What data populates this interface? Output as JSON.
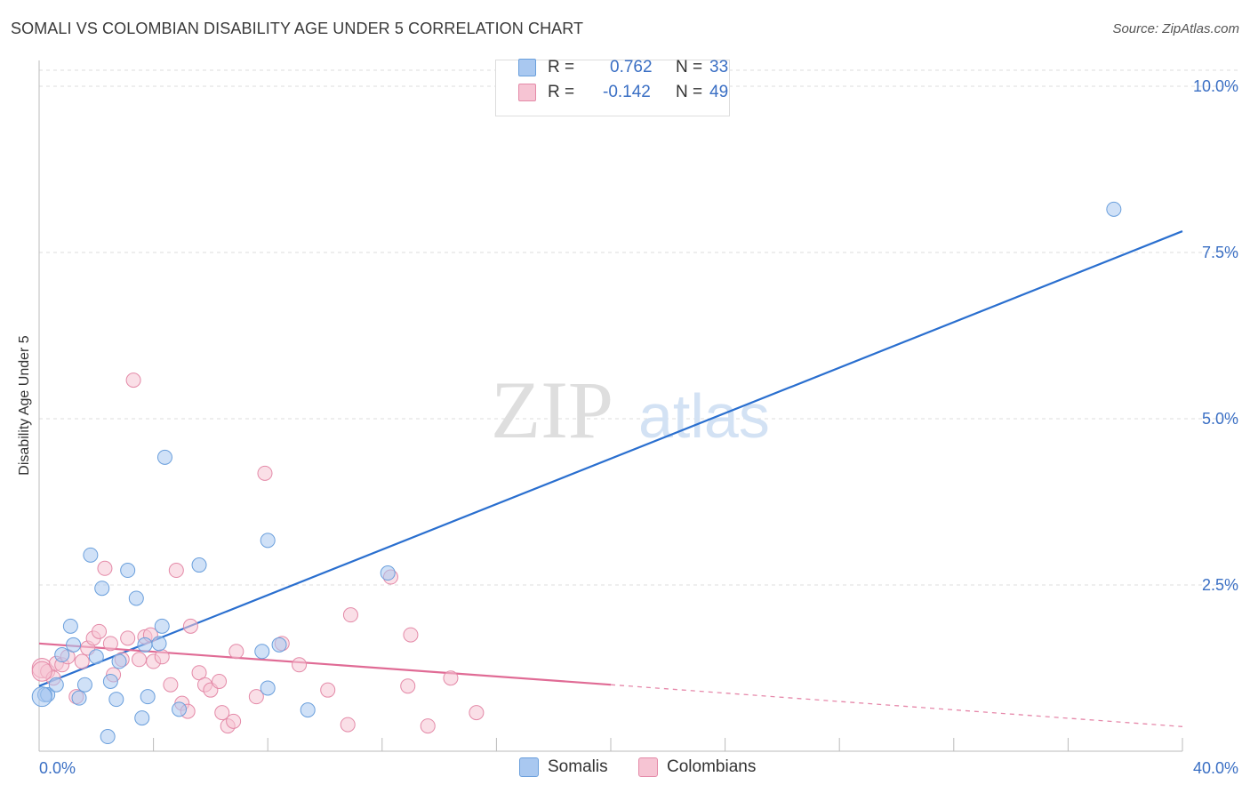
{
  "header": {
    "title": "SOMALI VS COLOMBIAN DISABILITY AGE UNDER 5 CORRELATION CHART",
    "source": "Source: ZipAtlas.com"
  },
  "watermark": {
    "zip": "ZIP",
    "atlas": "atlas"
  },
  "legend": {
    "rows": [
      {
        "r_label": "R =",
        "r_value": "0.762",
        "n_label": "N =",
        "n_value": "33",
        "color": "#a9c8f0",
        "border": "#6a9fdc"
      },
      {
        "r_label": "R =",
        "r_value": "-0.142",
        "n_label": "N =",
        "n_value": "49",
        "color": "#f6c4d3",
        "border": "#e48aa8"
      }
    ]
  },
  "bottom_legend": [
    {
      "label": "Somalis",
      "color": "#a9c8f0",
      "border": "#6a9fdc"
    },
    {
      "label": "Colombians",
      "color": "#f6c4d3",
      "border": "#e48aa8"
    }
  ],
  "chart_data": {
    "type": "scatter",
    "title": "SOMALI VS COLOMBIAN DISABILITY AGE UNDER 5 CORRELATION CHART",
    "xlabel": "",
    "ylabel": "Disability Age Under 5",
    "xlim": [
      0,
      40
    ],
    "ylim": [
      0,
      10.2
    ],
    "x_tick_labels": [
      {
        "value": 0,
        "label": "0.0%"
      },
      {
        "value": 40,
        "label": "40.0%"
      }
    ],
    "y_tick_labels": [
      {
        "value": 2.5,
        "label": "2.5%"
      },
      {
        "value": 5.0,
        "label": "5.0%"
      },
      {
        "value": 7.5,
        "label": "7.5%"
      },
      {
        "value": 10.0,
        "label": "10.0%"
      }
    ],
    "x_minor_ticks": [
      0,
      4,
      8,
      12,
      16,
      20,
      24,
      28,
      32,
      36,
      40
    ],
    "series": [
      {
        "name": "Somalis",
        "color": "#a9c8f0",
        "stroke": "#6a9fdc",
        "line_color": "#2a6fcf",
        "points": [
          [
            0.2,
            0.85
          ],
          [
            0.3,
            0.85
          ],
          [
            0.6,
            1.0
          ],
          [
            0.8,
            1.45
          ],
          [
            1.1,
            1.88
          ],
          [
            1.2,
            1.6
          ],
          [
            1.4,
            0.8
          ],
          [
            1.6,
            1.0
          ],
          [
            1.8,
            2.95
          ],
          [
            2.0,
            1.42
          ],
          [
            2.2,
            2.45
          ],
          [
            2.4,
            0.22
          ],
          [
            2.5,
            1.05
          ],
          [
            2.7,
            0.78
          ],
          [
            2.8,
            1.35
          ],
          [
            3.1,
            2.72
          ],
          [
            3.4,
            2.3
          ],
          [
            3.6,
            0.5
          ],
          [
            3.7,
            1.6
          ],
          [
            3.8,
            0.82
          ],
          [
            4.2,
            1.62
          ],
          [
            4.3,
            1.88
          ],
          [
            4.4,
            4.42
          ],
          [
            4.9,
            0.63
          ],
          [
            5.6,
            2.8
          ],
          [
            7.8,
            1.5
          ],
          [
            8.0,
            0.95
          ],
          [
            8.0,
            3.17
          ],
          [
            8.4,
            1.6
          ],
          [
            9.4,
            0.62
          ],
          [
            12.2,
            2.68
          ],
          [
            37.6,
            8.15
          ],
          [
            0.1,
            0.82
          ]
        ],
        "trend": {
          "x0": 0.0,
          "y0": 0.98,
          "x1": 40.0,
          "y1": 7.82
        }
      },
      {
        "name": "Colombians",
        "color": "#f6c4d3",
        "stroke": "#e48aa8",
        "line_color": "#e06b95",
        "points": [
          [
            0.1,
            1.25
          ],
          [
            0.3,
            1.2
          ],
          [
            0.5,
            1.1
          ],
          [
            0.6,
            1.32
          ],
          [
            0.8,
            1.3
          ],
          [
            1.0,
            1.42
          ],
          [
            1.3,
            0.82
          ],
          [
            1.5,
            1.35
          ],
          [
            1.7,
            1.55
          ],
          [
            1.9,
            1.7
          ],
          [
            2.1,
            1.8
          ],
          [
            2.3,
            2.75
          ],
          [
            2.5,
            1.62
          ],
          [
            2.6,
            1.15
          ],
          [
            2.9,
            1.38
          ],
          [
            3.1,
            1.7
          ],
          [
            3.3,
            5.58
          ],
          [
            3.5,
            1.38
          ],
          [
            3.7,
            1.72
          ],
          [
            3.9,
            1.75
          ],
          [
            4.0,
            1.35
          ],
          [
            4.3,
            1.42
          ],
          [
            4.6,
            1.0
          ],
          [
            4.8,
            2.72
          ],
          [
            5.0,
            0.72
          ],
          [
            5.2,
            0.6
          ],
          [
            5.3,
            1.88
          ],
          [
            5.6,
            1.18
          ],
          [
            5.8,
            1.0
          ],
          [
            6.0,
            0.92
          ],
          [
            6.3,
            1.05
          ],
          [
            6.4,
            0.58
          ],
          [
            6.6,
            0.38
          ],
          [
            6.8,
            0.45
          ],
          [
            6.9,
            1.5
          ],
          [
            7.6,
            0.82
          ],
          [
            7.9,
            4.18
          ],
          [
            8.5,
            1.62
          ],
          [
            9.1,
            1.3
          ],
          [
            10.1,
            0.92
          ],
          [
            10.8,
            0.4
          ],
          [
            10.9,
            2.05
          ],
          [
            12.3,
            2.62
          ],
          [
            12.9,
            0.98
          ],
          [
            13.0,
            1.75
          ],
          [
            13.6,
            0.38
          ],
          [
            14.4,
            1.1
          ],
          [
            15.3,
            0.58
          ],
          [
            0.1,
            1.2
          ]
        ],
        "trend": {
          "x0": 0.0,
          "y0": 1.62,
          "x1": 20.0,
          "y1": 1.0,
          "dash_x1": 40.0,
          "dash_y1": 0.37
        }
      }
    ]
  }
}
